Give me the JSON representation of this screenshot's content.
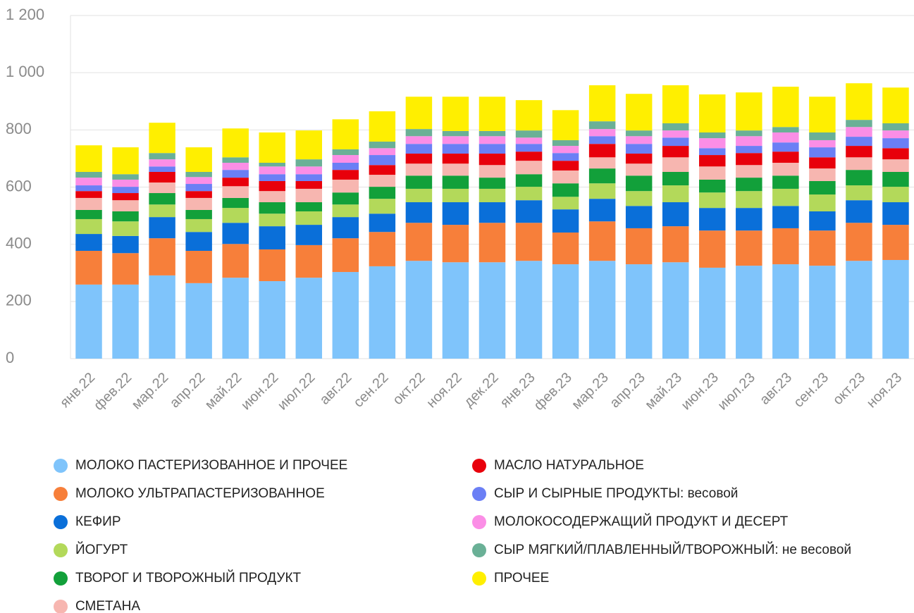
{
  "chart_data": {
    "type": "stacked_bar",
    "categories": [
      "янв.22",
      "фев.22",
      "мар.22",
      "апр.22",
      "май.22",
      "июн.22",
      "июл.22",
      "авг.22",
      "сен.22",
      "окт.22",
      "ноя.22",
      "дек.22",
      "янв.23",
      "фев.23",
      "мар.23",
      "апр.23",
      "май.23",
      "июн.23",
      "июл.23",
      "авг.23",
      "сен.23",
      "окт.23",
      "ноя.23"
    ],
    "ylim": [
      0,
      1200
    ],
    "yticks": [
      0,
      200,
      400,
      600,
      800,
      {
        "value": 1000,
        "label": "1 000"
      },
      {
        "value": 1200,
        "label": "1 200"
      }
    ],
    "grid": true,
    "series": [
      {
        "name": "МОЛОКО ПАСТЕРИЗОВАННОЕ И ПРОЧЕЕ",
        "color": "#7fc4fb",
        "values": [
          259,
          259,
          291,
          264,
          283,
          271,
          283,
          303,
          323,
          342,
          337,
          337,
          342,
          330,
          342,
          330,
          337,
          318,
          325,
          330,
          325,
          342,
          345
        ]
      },
      {
        "name": "МОЛОКО УЛЬТРАПАСТЕРИЗОВАННОЕ",
        "color": "#f77f3a",
        "values": [
          118,
          110,
          130,
          113,
          118,
          111,
          114,
          118,
          120,
          133,
          131,
          138,
          133,
          111,
          138,
          126,
          126,
          130,
          123,
          126,
          123,
          133,
          123
        ]
      },
      {
        "name": "КЕФИР",
        "color": "#0a6fd9",
        "values": [
          59,
          60,
          74,
          66,
          74,
          81,
          71,
          74,
          64,
          72,
          79,
          72,
          79,
          81,
          79,
          78,
          84,
          79,
          79,
          78,
          67,
          79,
          79
        ]
      },
      {
        "name": "ЙОГУРТ",
        "color": "#b3d95a",
        "values": [
          52,
          51,
          44,
          45,
          52,
          44,
          47,
          44,
          52,
          47,
          47,
          47,
          47,
          44,
          54,
          52,
          59,
          54,
          59,
          60,
          59,
          52,
          54
        ]
      },
      {
        "name": "ТВОРОГ И ТВОРОЖНЫЙ ПРОДУКТ",
        "color": "#12a03a",
        "values": [
          32,
          35,
          40,
          32,
          35,
          40,
          32,
          42,
          42,
          46,
          46,
          39,
          44,
          47,
          52,
          54,
          47,
          45,
          47,
          46,
          47,
          54,
          52
        ]
      },
      {
        "name": "СМЕТАНА",
        "color": "#f7b6b0",
        "values": [
          42,
          39,
          37,
          42,
          41,
          39,
          47,
          45,
          42,
          42,
          42,
          44,
          47,
          45,
          39,
          42,
          51,
          46,
          44,
          45,
          44,
          44,
          44
        ]
      },
      {
        "name": "МАСЛО НАТУРАЛЬНОЕ",
        "color": "#e8000b",
        "values": [
          24,
          25,
          37,
          24,
          30,
          35,
          27,
          34,
          34,
          35,
          35,
          40,
          32,
          34,
          47,
          35,
          40,
          40,
          42,
          39,
          39,
          40,
          39
        ]
      },
      {
        "name": "СЫР И СЫРНЫЕ ПРОДУКТЫ: весовой",
        "color": "#6b7ff5",
        "values": [
          20,
          22,
          19,
          25,
          27,
          24,
          24,
          25,
          35,
          34,
          34,
          34,
          27,
          27,
          27,
          34,
          29,
          24,
          25,
          32,
          35,
          32,
          35
        ]
      },
      {
        "name": "МОЛОКОСОДЕРЖАЩИЙ ПРОДУКТ И ДЕСЕРТ",
        "color": "#fb8ee6",
        "values": [
          27,
          25,
          25,
          24,
          25,
          27,
          27,
          27,
          24,
          27,
          27,
          27,
          22,
          25,
          25,
          27,
          25,
          35,
          34,
          35,
          25,
          34,
          27
        ]
      },
      {
        "name": "СЫР МЯГКИЙ/ПЛАВЛЕННЫЙ/ТВОРОЖНЫЙ: не весовой",
        "color": "#6ab096",
        "values": [
          20,
          19,
          22,
          18,
          19,
          13,
          25,
          20,
          23,
          25,
          18,
          18,
          25,
          20,
          27,
          20,
          25,
          20,
          20,
          19,
          27,
          25,
          25
        ]
      },
      {
        "name": "ПРОЧЕЕ",
        "color": "#ffef00",
        "values": [
          93,
          94,
          106,
          86,
          101,
          106,
          101,
          105,
          106,
          113,
          120,
          120,
          106,
          105,
          126,
          128,
          133,
          133,
          133,
          141,
          125,
          128,
          125
        ]
      }
    ]
  }
}
